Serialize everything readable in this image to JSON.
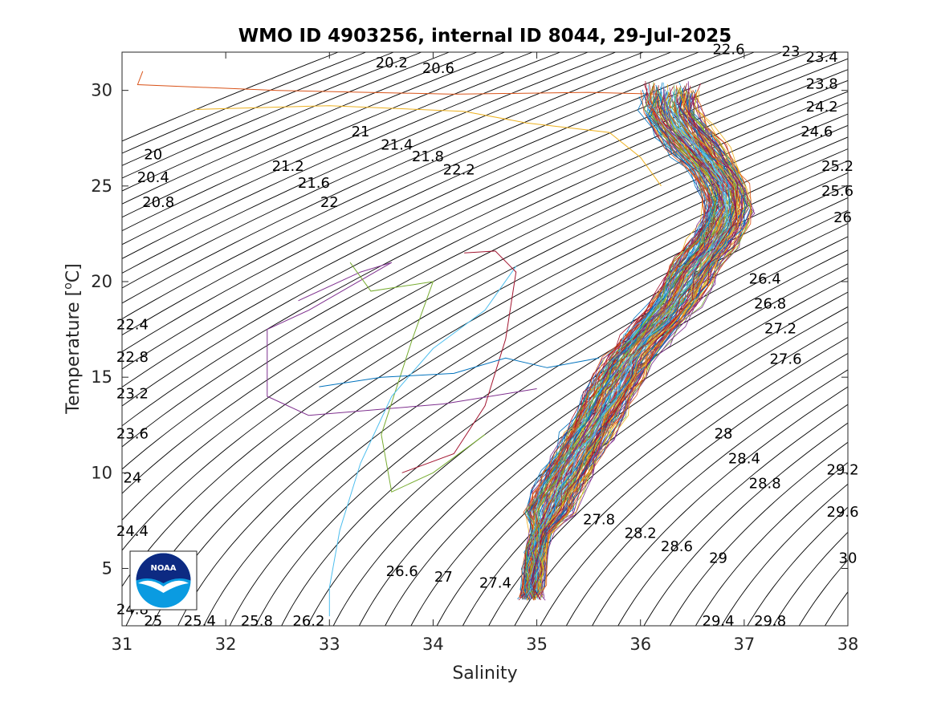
{
  "chart_data": {
    "type": "line",
    "title": "WMO ID 4903256, internal ID 8044, 29-Jul-2025",
    "xlabel": "Salinity",
    "ylabel_main": "Temperature [",
    "ylabel_sup": "o",
    "ylabel_tail": "C]",
    "xlim": [
      31,
      38
    ],
    "ylim": [
      2,
      32
    ],
    "xticks": [
      "31",
      "32",
      "33",
      "34",
      "35",
      "36",
      "37",
      "38"
    ],
    "yticks": [
      "5",
      "10",
      "15",
      "20",
      "25",
      "30"
    ],
    "grid": false,
    "background_contours": "potential density (sigma) isopycnals, step 0.2",
    "contour_labels": [
      {
        "text": "20",
        "s": 31.3,
        "t": 26.4
      },
      {
        "text": "20.4",
        "s": 31.3,
        "t": 25.2
      },
      {
        "text": "20.8",
        "s": 31.35,
        "t": 23.9
      },
      {
        "text": "20.2",
        "s": 33.6,
        "t": 31.2
      },
      {
        "text": "20.6",
        "s": 34.05,
        "t": 30.9
      },
      {
        "text": "21",
        "s": 33.3,
        "t": 27.6
      },
      {
        "text": "21.4",
        "s": 33.65,
        "t": 26.9
      },
      {
        "text": "21.8",
        "s": 33.95,
        "t": 26.3
      },
      {
        "text": "22.2",
        "s": 34.25,
        "t": 25.6
      },
      {
        "text": "21.2",
        "s": 32.6,
        "t": 25.8
      },
      {
        "text": "21.6",
        "s": 32.85,
        "t": 24.9
      },
      {
        "text": "22",
        "s": 33.0,
        "t": 23.9
      },
      {
        "text": "22.6",
        "s": 36.85,
        "t": 31.9
      },
      {
        "text": "23",
        "s": 37.45,
        "t": 31.8
      },
      {
        "text": "23.4",
        "s": 37.75,
        "t": 31.5
      },
      {
        "text": "23.8",
        "s": 37.75,
        "t": 30.1
      },
      {
        "text": "24.2",
        "s": 37.75,
        "t": 28.9
      },
      {
        "text": "24.6",
        "s": 37.7,
        "t": 27.6
      },
      {
        "text": "25.2",
        "s": 37.9,
        "t": 25.8
      },
      {
        "text": "25.6",
        "s": 37.9,
        "t": 24.5
      },
      {
        "text": "26",
        "s": 37.95,
        "t": 23.1
      },
      {
        "text": "26.4",
        "s": 37.2,
        "t": 19.9
      },
      {
        "text": "26.8",
        "s": 37.25,
        "t": 18.6
      },
      {
        "text": "27.2",
        "s": 37.35,
        "t": 17.3
      },
      {
        "text": "27.6",
        "s": 37.4,
        "t": 15.7
      },
      {
        "text": "22.4",
        "s": 31.1,
        "t": 17.5
      },
      {
        "text": "22.8",
        "s": 31.1,
        "t": 15.8
      },
      {
        "text": "23.2",
        "s": 31.1,
        "t": 13.9
      },
      {
        "text": "23.6",
        "s": 31.1,
        "t": 11.8
      },
      {
        "text": "24",
        "s": 31.1,
        "t": 9.5
      },
      {
        "text": "24.4",
        "s": 31.1,
        "t": 6.7
      },
      {
        "text": "24.8",
        "s": 31.1,
        "t": 2.6
      },
      {
        "text": "25",
        "s": 31.3,
        "t": 2.0
      },
      {
        "text": "25.4",
        "s": 31.75,
        "t": 2.0
      },
      {
        "text": "25.8",
        "s": 32.3,
        "t": 2.0
      },
      {
        "text": "26.2",
        "s": 32.8,
        "t": 2.0
      },
      {
        "text": "26.6",
        "s": 33.7,
        "t": 4.6
      },
      {
        "text": "27",
        "s": 34.1,
        "t": 4.3
      },
      {
        "text": "27.4",
        "s": 34.6,
        "t": 4.0
      },
      {
        "text": "27.8",
        "s": 35.6,
        "t": 7.3
      },
      {
        "text": "28.2",
        "s": 36.0,
        "t": 6.6
      },
      {
        "text": "28.6",
        "s": 36.35,
        "t": 5.9
      },
      {
        "text": "29",
        "s": 36.75,
        "t": 5.3
      },
      {
        "text": "30",
        "s": 38.0,
        "t": 5.3
      },
      {
        "text": "28",
        "s": 36.8,
        "t": 11.8
      },
      {
        "text": "28.4",
        "s": 37.0,
        "t": 10.5
      },
      {
        "text": "28.8",
        "s": 37.2,
        "t": 9.2
      },
      {
        "text": "29.2",
        "s": 37.95,
        "t": 9.9
      },
      {
        "text": "29.6",
        "s": 37.95,
        "t": 7.7
      },
      {
        "text": "29.4",
        "s": 36.75,
        "t": 2.0
      },
      {
        "text": "29.8",
        "s": 37.25,
        "t": 2.0
      }
    ],
    "mean_profile": [
      {
        "s": 36.3,
        "t": 30.0
      },
      {
        "s": 36.3,
        "t": 29.0
      },
      {
        "s": 36.4,
        "t": 28.0
      },
      {
        "s": 36.55,
        "t": 27.0
      },
      {
        "s": 36.7,
        "t": 26.0
      },
      {
        "s": 36.8,
        "t": 25.0
      },
      {
        "s": 36.85,
        "t": 24.0
      },
      {
        "s": 36.8,
        "t": 23.0
      },
      {
        "s": 36.7,
        "t": 22.0
      },
      {
        "s": 36.55,
        "t": 21.0
      },
      {
        "s": 36.45,
        "t": 20.0
      },
      {
        "s": 36.35,
        "t": 19.0
      },
      {
        "s": 36.2,
        "t": 18.0
      },
      {
        "s": 36.05,
        "t": 17.0
      },
      {
        "s": 35.9,
        "t": 16.0
      },
      {
        "s": 35.8,
        "t": 15.0
      },
      {
        "s": 35.7,
        "t": 14.0
      },
      {
        "s": 35.6,
        "t": 13.0
      },
      {
        "s": 35.5,
        "t": 12.0
      },
      {
        "s": 35.4,
        "t": 11.0
      },
      {
        "s": 35.3,
        "t": 10.0
      },
      {
        "s": 35.2,
        "t": 9.0
      },
      {
        "s": 35.12,
        "t": 8.0
      },
      {
        "s": 35.05,
        "t": 7.0
      },
      {
        "s": 35.0,
        "t": 6.0
      },
      {
        "s": 34.98,
        "t": 5.0
      },
      {
        "s": 34.96,
        "t": 4.0
      },
      {
        "s": 34.95,
        "t": 3.5
      }
    ],
    "outlier_profiles": [
      [
        {
          "s": 31.2,
          "t": 31.0
        },
        {
          "s": 31.15,
          "t": 30.3
        },
        {
          "s": 32.5,
          "t": 30.0
        },
        {
          "s": 34.2,
          "t": 29.8
        },
        {
          "s": 35.5,
          "t": 29.9
        },
        {
          "s": 36.2,
          "t": 29.8
        }
      ],
      [
        {
          "s": 31.7,
          "t": 29.0
        },
        {
          "s": 33.0,
          "t": 29.2
        },
        {
          "s": 34.3,
          "t": 28.9
        },
        {
          "s": 34.9,
          "t": 28.3
        },
        {
          "s": 35.7,
          "t": 27.8
        },
        {
          "s": 36.0,
          "t": 26.5
        },
        {
          "s": 36.2,
          "t": 25.0
        }
      ],
      [
        {
          "s": 32.7,
          "t": 19.0
        },
        {
          "s": 33.3,
          "t": 20.5
        },
        {
          "s": 33.6,
          "t": 21.0
        },
        {
          "s": 32.8,
          "t": 18.5
        },
        {
          "s": 32.4,
          "t": 17.5
        },
        {
          "s": 32.4,
          "t": 14.0
        },
        {
          "s": 32.8,
          "t": 13.0
        },
        {
          "s": 34.1,
          "t": 13.6
        },
        {
          "s": 35.0,
          "t": 14.4
        }
      ],
      [
        {
          "s": 33.2,
          "t": 21.0
        },
        {
          "s": 33.4,
          "t": 19.5
        },
        {
          "s": 34.0,
          "t": 20.0
        },
        {
          "s": 33.8,
          "t": 17.0
        },
        {
          "s": 33.5,
          "t": 12.0
        },
        {
          "s": 33.6,
          "t": 9.0
        },
        {
          "s": 34.0,
          "t": 10.0
        },
        {
          "s": 34.5,
          "t": 12.0
        }
      ],
      [
        {
          "s": 33.0,
          "t": 2.5
        },
        {
          "s": 33.0,
          "t": 4.0
        },
        {
          "s": 33.1,
          "t": 7.0
        },
        {
          "s": 33.3,
          "t": 10.5
        },
        {
          "s": 33.6,
          "t": 14.0
        },
        {
          "s": 34.0,
          "t": 16.5
        },
        {
          "s": 34.5,
          "t": 18.5
        },
        {
          "s": 34.8,
          "t": 20.8
        }
      ],
      [
        {
          "s": 34.3,
          "t": 21.5
        },
        {
          "s": 34.6,
          "t": 21.6
        },
        {
          "s": 34.8,
          "t": 20.5
        },
        {
          "s": 34.7,
          "t": 17.0
        },
        {
          "s": 34.5,
          "t": 13.5
        },
        {
          "s": 34.2,
          "t": 11.0
        },
        {
          "s": 33.7,
          "t": 10.0
        }
      ],
      [
        {
          "s": 32.9,
          "t": 14.5
        },
        {
          "s": 33.5,
          "t": 15.0
        },
        {
          "s": 34.2,
          "t": 15.2
        },
        {
          "s": 34.7,
          "t": 16.0
        },
        {
          "s": 35.1,
          "t": 15.5
        },
        {
          "s": 35.6,
          "t": 16.0
        }
      ]
    ]
  }
}
